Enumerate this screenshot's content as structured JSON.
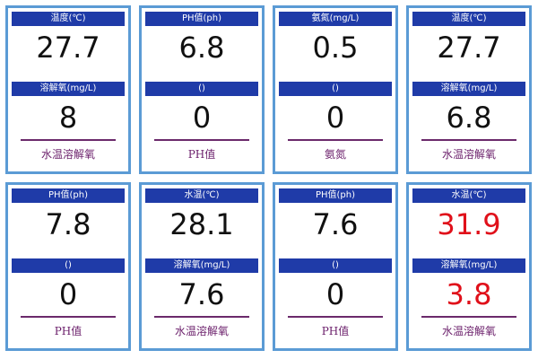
{
  "cards": [
    {
      "top_label": "温度(℃)",
      "top_value": "27.7",
      "mid_label": "溶解氧(mg/L)",
      "mid_value": "8",
      "footer": "水温溶解氧"
    },
    {
      "top_label": "PH值(ph)",
      "top_value": "6.8",
      "mid_label": "()",
      "mid_value": "0",
      "footer": "PH值"
    },
    {
      "top_label": "氨氮(mg/L)",
      "top_value": "0.5",
      "mid_label": "()",
      "mid_value": "0",
      "footer": "氨氮"
    },
    {
      "top_label": "温度(℃)",
      "top_value": "27.7",
      "mid_label": "溶解氧(mg/L)",
      "mid_value": "6.8",
      "footer": "水温溶解氧"
    },
    {
      "top_label": "PH值(ph)",
      "top_value": "7.8",
      "mid_label": "()",
      "mid_value": "0",
      "footer": "PH值"
    },
    {
      "top_label": "水温(℃)",
      "top_value": "28.1",
      "mid_label": "溶解氧(mg/L)",
      "mid_value": "7.6",
      "footer": "水温溶解氧"
    },
    {
      "top_label": "PH值(ph)",
      "top_value": "7.6",
      "mid_label": "()",
      "mid_value": "0",
      "footer": "PH值"
    },
    {
      "top_label": "水温(℃)",
      "top_value": "31.9",
      "mid_label": "溶解氧(mg/L)",
      "mid_value": "3.8",
      "footer": "水温溶解氧"
    }
  ],
  "colors": {
    "card_border": "#5b9bd5",
    "header_bg": "#1f3ba8",
    "header_text": "#ffffff",
    "value_normal": "#111111",
    "value_alarm": "#e0101a",
    "footer_text": "#6b1f6b"
  }
}
